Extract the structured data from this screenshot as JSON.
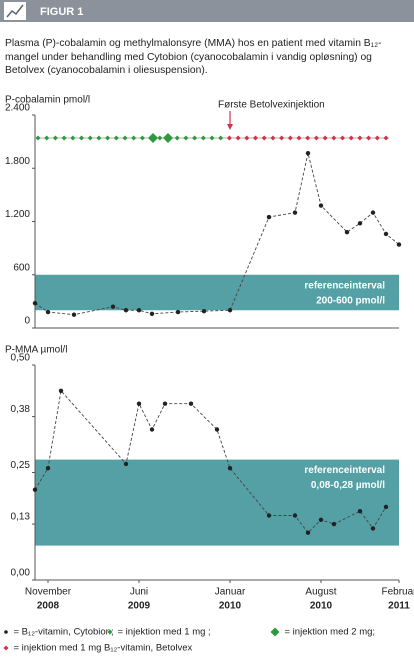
{
  "header": {
    "title": "FIGUR 1"
  },
  "caption": "Plasma (P)-cobalamin og methylmalonsyre (MMA) hos en patient med vitamin B₁₂-mangel under behandling med Cytobion (cyanocobalamin i vandig opløsning) og Betolvex (cyanocobalamin i oliesuspension).",
  "chart_data": [
    {
      "type": "line",
      "ylabel": "P-cobalamin pmol/l",
      "annotation": {
        "text": "Første Betolvexinjektion",
        "x": "2010-01"
      },
      "xlim": [
        "2008-10",
        "2011-02"
      ],
      "ylim": [
        0,
        2400
      ],
      "yticks": [
        {
          "value": 2400,
          "label": "2.400"
        },
        {
          "value": 1800,
          "label": "1.800"
        },
        {
          "value": 1200,
          "label": "1.200"
        },
        600,
        0
      ],
      "band": {
        "range": [
          200,
          600
        ],
        "label": [
          "referenceinterval",
          "200-600 pmol/l"
        ],
        "color": "#55a0a5"
      },
      "x": [
        "2008-10",
        "2008-11",
        "2009-01",
        "2009-04",
        "2009-05",
        "2009-06",
        "2009-07",
        "2009-09",
        "2009-11",
        "2010-01",
        "2010-04",
        "2010-06",
        "2010-07",
        "2010-08",
        "2010-10",
        "2010-11",
        "2010-12",
        "2011-01",
        "2011-02"
      ],
      "values": [
        280,
        180,
        150,
        240,
        200,
        200,
        160,
        180,
        190,
        200,
        1250,
        1300,
        1970,
        1380,
        1080,
        1180,
        1300,
        1060,
        940
      ],
      "color": "#222222"
    },
    {
      "type": "line",
      "ylabel": "P-MMA µmol/l",
      "xlim": [
        "2008-10",
        "2011-02"
      ],
      "xticks": [
        {
          "value": "2008-11",
          "label": "November",
          "year": "2008"
        },
        {
          "value": "2009-06",
          "label": "Juni",
          "year": "2009"
        },
        {
          "value": "2010-01",
          "label": "Januar",
          "year": "2010"
        },
        {
          "value": "2010-08",
          "label": "August",
          "year": "2010"
        },
        {
          "value": "2011-02",
          "label": "Februar",
          "year": "2011"
        }
      ],
      "ylim": [
        0,
        0.5
      ],
      "yticks": [
        {
          "value": 0.5,
          "label": "0,50"
        },
        {
          "value": 0.38,
          "label": "0,38"
        },
        {
          "value": 0.25,
          "label": "0,25"
        },
        {
          "value": 0.13,
          "label": "0,13"
        },
        {
          "value": 0,
          "label": "0,00"
        }
      ],
      "band": {
        "range": [
          0.08,
          0.28
        ],
        "label": [
          "referenceinterval",
          "0,08-0,28 µmol/l"
        ],
        "color": "#55a0a5"
      },
      "x": [
        "2008-10",
        "2008-11",
        "2008-12",
        "2009-05",
        "2009-06",
        "2009-07",
        "2009-08",
        "2009-10",
        "2009-12",
        "2010-01",
        "2010-04",
        "2010-06",
        "2010-07",
        "2010-08",
        "2010-09",
        "2010-11",
        "2010-12",
        "2011-01"
      ],
      "values": [
        0.21,
        0.26,
        0.44,
        0.27,
        0.41,
        0.35,
        0.41,
        0.41,
        0.35,
        0.26,
        0.15,
        0.15,
        0.11,
        0.14,
        0.13,
        0.16,
        0.12,
        0.17
      ],
      "color": "#222222"
    }
  ],
  "legend": [
    {
      "text": "= B₁₂-vitamin, Cytobion;",
      "color": "#222222"
    },
    {
      "text": "= injektion med 1 mg ;",
      "color": "#2e9a3e"
    },
    {
      "text": "= injektion med  2 mg;",
      "color": "#2e9a3e"
    },
    {
      "text": "= injektion med 1 mg B₁₂-vitamin, Betolvex",
      "color": "#d0344a"
    }
  ]
}
